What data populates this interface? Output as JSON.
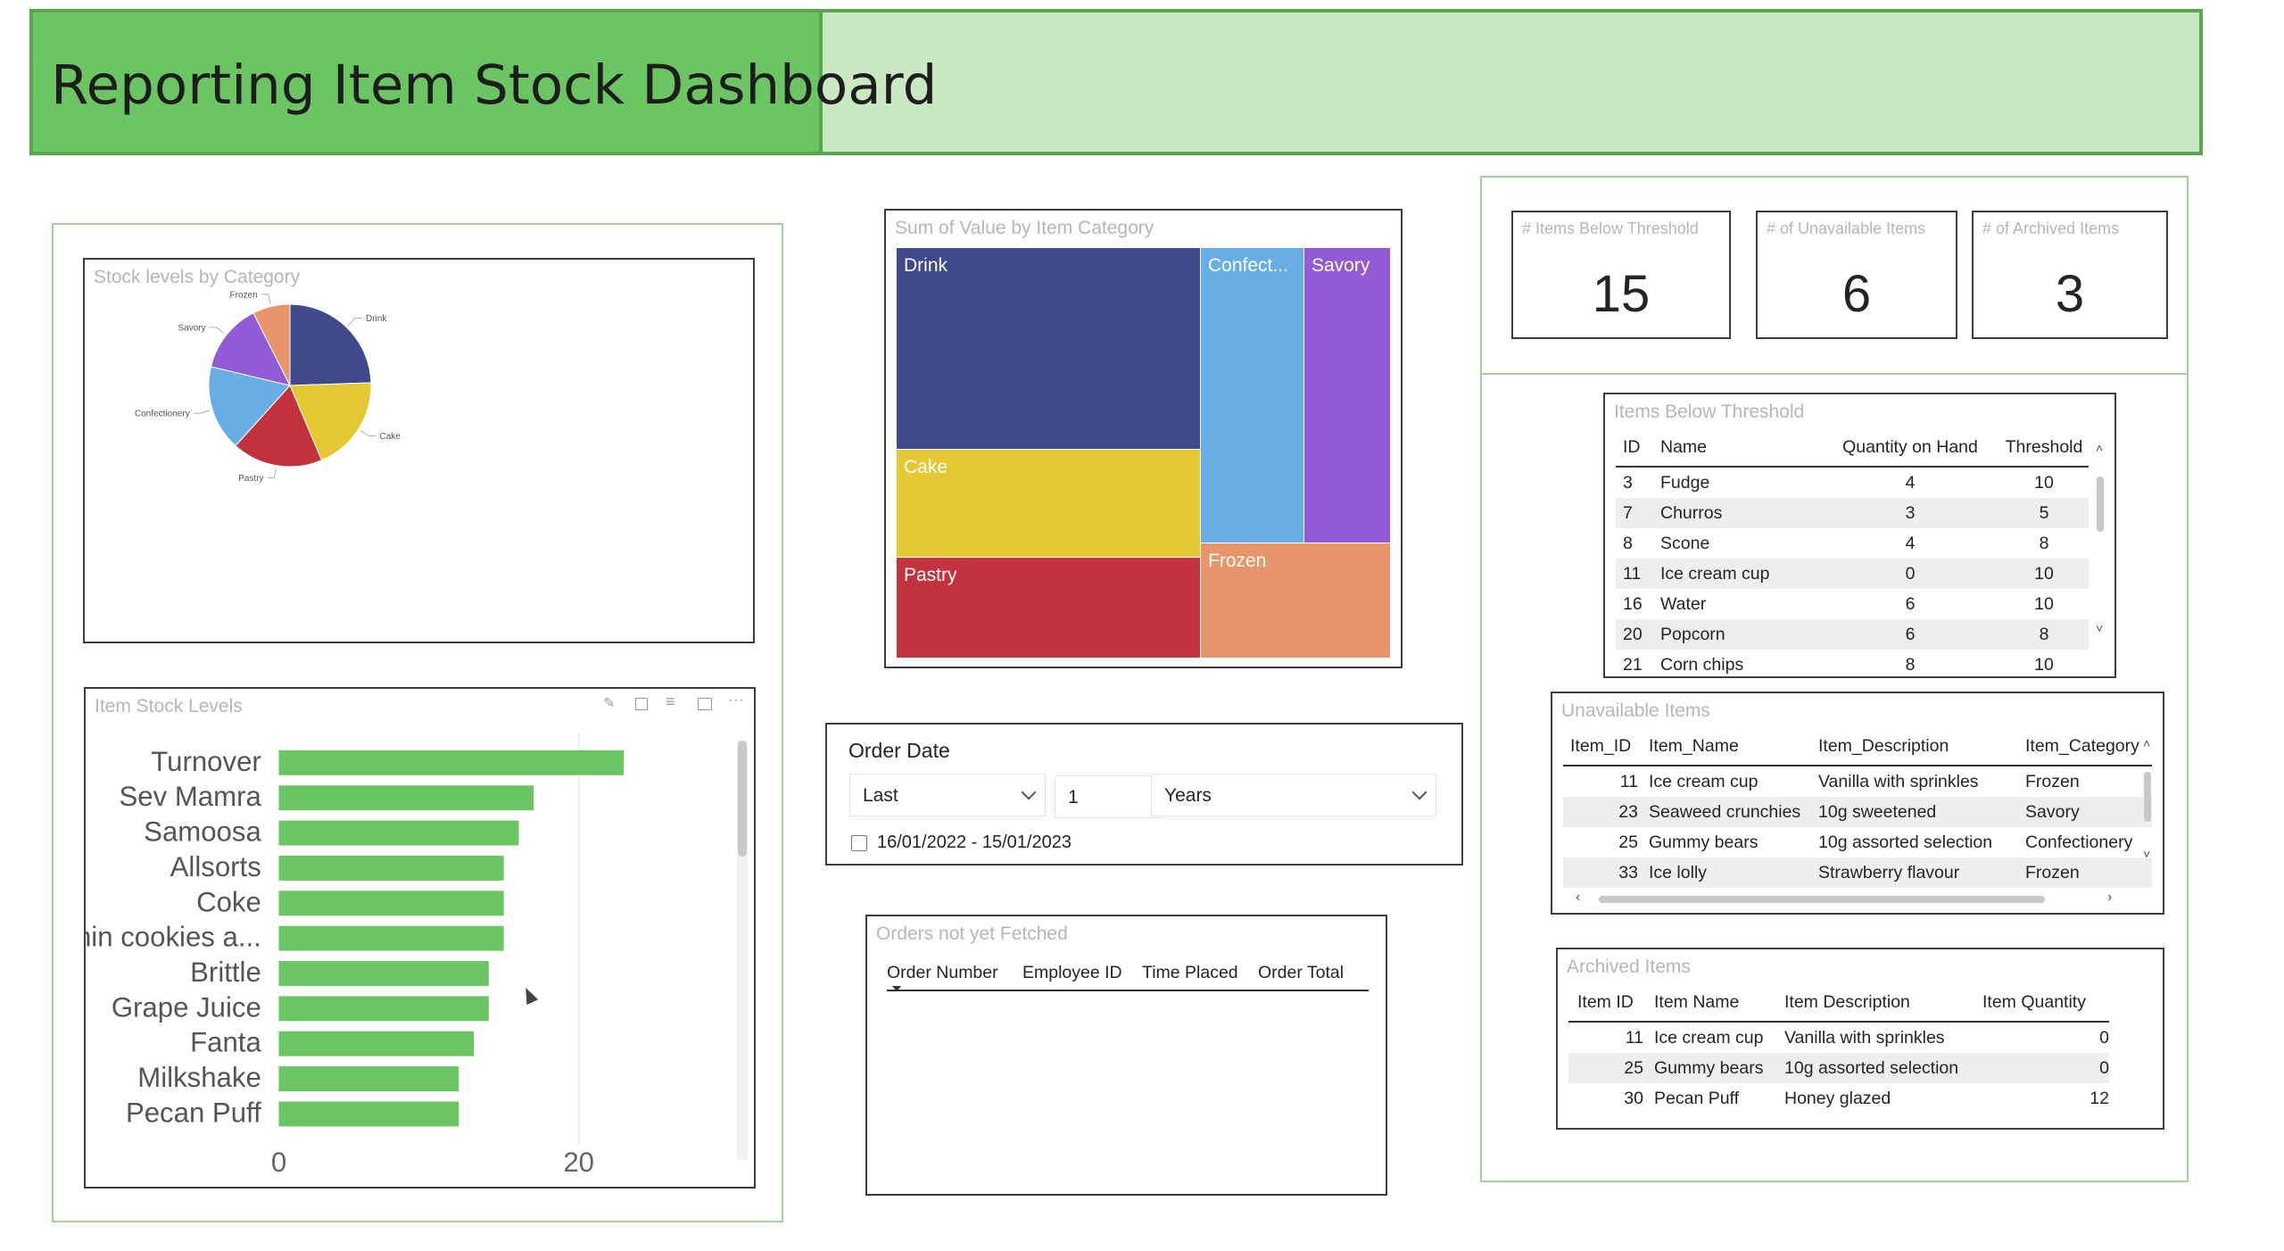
{
  "header": {
    "title": "Reporting Item Stock Dashboard"
  },
  "pie": {
    "title": "Stock levels by Category",
    "slices": [
      {
        "label": "Drink",
        "value": 23,
        "color": "#3e4a8c"
      },
      {
        "label": "Cake",
        "value": 18,
        "color": "#e6c832"
      },
      {
        "label": "Pastry",
        "value": 17,
        "color": "#c4313f"
      },
      {
        "label": "Confectionery",
        "value": 16,
        "color": "#68aee6"
      },
      {
        "label": "Savory",
        "value": 13,
        "color": "#9359d6"
      },
      {
        "label": "Frozen",
        "value": 7,
        "color": "#e6966a"
      }
    ]
  },
  "treemap": {
    "title": "Sum of Value by Item Category",
    "labels": {
      "drink": "Drink",
      "cake": "Cake",
      "pastry": "Pastry",
      "confect": "Confect...",
      "savory": "Savory",
      "frozen": "Frozen"
    },
    "colors": {
      "drink": "#3e4a8c",
      "cake": "#e6c832",
      "pastry": "#c4313f",
      "confect": "#68aee6",
      "savory": "#9359d6",
      "frozen": "#e6966a"
    }
  },
  "cards": [
    {
      "title": "# Items Below Threshold",
      "value": "15"
    },
    {
      "title": "# of Unavailable Items",
      "value": "6"
    },
    {
      "title": "# of Archived Items",
      "value": "3"
    }
  ],
  "below_threshold": {
    "title": "Items Below Threshold",
    "headers": [
      "ID",
      "Name",
      "Quantity on Hand",
      "Threshold"
    ],
    "rows": [
      [
        "3",
        "Fudge",
        "4",
        "10"
      ],
      [
        "7",
        "Churros",
        "3",
        "5"
      ],
      [
        "8",
        "Scone",
        "4",
        "8"
      ],
      [
        "11",
        "Ice cream cup",
        "0",
        "10"
      ],
      [
        "16",
        "Water",
        "6",
        "10"
      ],
      [
        "20",
        "Popcorn",
        "6",
        "8"
      ],
      [
        "21",
        "Corn chips",
        "8",
        "10"
      ]
    ]
  },
  "unavailable": {
    "title": "Unavailable Items",
    "headers": [
      "Item_ID",
      "Item_Name",
      "Item_Description",
      "Item_Category"
    ],
    "rows": [
      [
        "11",
        "Ice cream cup",
        "Vanilla with sprinkles",
        "Frozen"
      ],
      [
        "23",
        "Seaweed crunchies",
        "10g sweetened",
        "Savory"
      ],
      [
        "25",
        "Gummy bears",
        "10g assorted selection",
        "Confectionery"
      ],
      [
        "33",
        "Ice lolly",
        "Strawberry flavour",
        "Frozen"
      ]
    ]
  },
  "archived": {
    "title": "Archived Items",
    "headers": [
      "Item ID",
      "Item Name",
      "Item Description",
      "Item Quantity"
    ],
    "rows": [
      [
        "11",
        "Ice cream cup",
        "Vanilla with sprinkles",
        "0"
      ],
      [
        "25",
        "Gummy bears",
        "10g assorted selection",
        "0"
      ],
      [
        "30",
        "Pecan Puff",
        "Honey glazed",
        "12"
      ]
    ]
  },
  "order_date": {
    "title": "Order Date",
    "mode": "Last",
    "amount": "1",
    "unit": "Years",
    "range": "16/01/2022 - 15/01/2023"
  },
  "orders": {
    "title": "Orders not yet Fetched",
    "headers": [
      "Order Number",
      "Employee ID",
      "Time Placed",
      "Order Total"
    ]
  },
  "chart_data": {
    "type": "bar",
    "title": "Item Stock Levels",
    "categories": [
      "Turnover",
      "Sev Mamra",
      "Samoosa",
      "Allsorts",
      "Coke",
      "Minin cookies a...",
      "Brittle",
      "Grape Juice",
      "Fanta",
      "Milkshake",
      "Pecan Puff"
    ],
    "values": [
      23,
      17,
      16,
      15,
      15,
      15,
      14,
      14,
      13,
      12,
      12
    ],
    "xlim": [
      0,
      30
    ],
    "xticks": [
      0,
      20
    ],
    "color": "#6cc563"
  }
}
